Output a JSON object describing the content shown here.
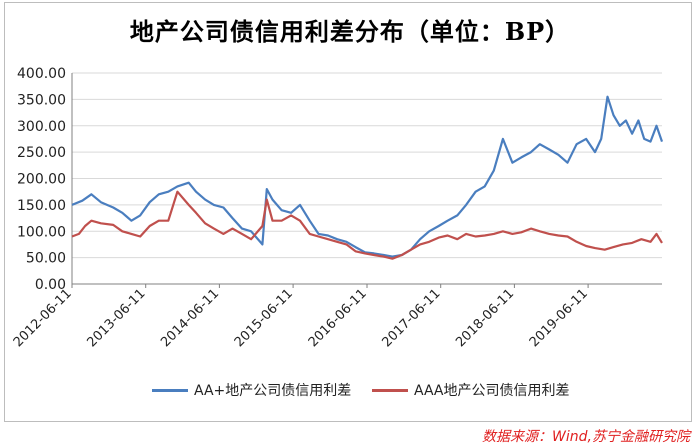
{
  "title": "地产公司债信用利差分布（单位：BP）",
  "source_note": "数据来源：Wind,苏宁金融研究院",
  "colors": {
    "aa_plus": "#4a7ebf",
    "aaa": "#c0504d",
    "grid": "#d9d9d9",
    "axis": "#808080"
  },
  "chart_data": {
    "type": "line",
    "title": "地产公司债信用利差分布（单位：BP）",
    "xlabel": "",
    "ylabel": "",
    "ylim": [
      0,
      400
    ],
    "yticks": [
      "0.00",
      "50.00",
      "100.00",
      "150.00",
      "200.00",
      "250.00",
      "300.00",
      "350.00",
      "400.00"
    ],
    "xlim": [
      "2012-06-11",
      "2020-06-11"
    ],
    "xticks": [
      "2012-06-11",
      "2013-06-11",
      "2014-06-11",
      "2015-06-11",
      "2016-06-11",
      "2017-06-11",
      "2018-06-11",
      "2019-06-11"
    ],
    "grid": "horizontal",
    "legend": "bottom",
    "series": [
      {
        "name": "AA+地产公司债信用利差",
        "color": "#4a7ebf",
        "points": [
          [
            "2012-06-11",
            150
          ],
          [
            "2012-08-01",
            158
          ],
          [
            "2012-09-15",
            170
          ],
          [
            "2012-11-01",
            155
          ],
          [
            "2013-01-01",
            145
          ],
          [
            "2013-02-15",
            135
          ],
          [
            "2013-04-01",
            120
          ],
          [
            "2013-05-15",
            130
          ],
          [
            "2013-07-01",
            155
          ],
          [
            "2013-08-15",
            170
          ],
          [
            "2013-10-01",
            175
          ],
          [
            "2013-11-15",
            185
          ],
          [
            "2014-01-10",
            192
          ],
          [
            "2014-02-15",
            175
          ],
          [
            "2014-04-01",
            160
          ],
          [
            "2014-05-15",
            150
          ],
          [
            "2014-07-01",
            145
          ],
          [
            "2014-08-15",
            125
          ],
          [
            "2014-10-01",
            105
          ],
          [
            "2014-11-15",
            100
          ],
          [
            "2015-01-10",
            75
          ],
          [
            "2015-02-01",
            180
          ],
          [
            "2015-03-01",
            160
          ],
          [
            "2015-04-15",
            140
          ],
          [
            "2015-06-01",
            135
          ],
          [
            "2015-07-15",
            150
          ],
          [
            "2015-09-01",
            120
          ],
          [
            "2015-10-15",
            95
          ],
          [
            "2015-12-01",
            92
          ],
          [
            "2016-01-15",
            85
          ],
          [
            "2016-03-01",
            80
          ],
          [
            "2016-04-15",
            70
          ],
          [
            "2016-06-01",
            60
          ],
          [
            "2016-07-15",
            58
          ],
          [
            "2016-09-01",
            55
          ],
          [
            "2016-10-15",
            52
          ],
          [
            "2016-12-01",
            55
          ],
          [
            "2017-01-15",
            65
          ],
          [
            "2017-03-01",
            85
          ],
          [
            "2017-04-15",
            100
          ],
          [
            "2017-06-01",
            110
          ],
          [
            "2017-07-15",
            120
          ],
          [
            "2017-09-01",
            130
          ],
          [
            "2017-10-15",
            150
          ],
          [
            "2017-12-01",
            175
          ],
          [
            "2018-01-15",
            185
          ],
          [
            "2018-03-01",
            215
          ],
          [
            "2018-04-15",
            275
          ],
          [
            "2018-06-01",
            230
          ],
          [
            "2018-07-15",
            240
          ],
          [
            "2018-09-01",
            250
          ],
          [
            "2018-10-15",
            265
          ],
          [
            "2018-12-01",
            255
          ],
          [
            "2019-01-15",
            245
          ],
          [
            "2019-03-01",
            230
          ],
          [
            "2019-04-15",
            265
          ],
          [
            "2019-06-01",
            275
          ],
          [
            "2019-07-15",
            250
          ],
          [
            "2019-08-15",
            275
          ],
          [
            "2019-09-15",
            355
          ],
          [
            "2019-10-15",
            320
          ],
          [
            "2019-11-15",
            300
          ],
          [
            "2019-12-15",
            310
          ],
          [
            "2020-01-15",
            285
          ],
          [
            "2020-02-15",
            310
          ],
          [
            "2020-03-15",
            275
          ],
          [
            "2020-04-15",
            270
          ],
          [
            "2020-05-15",
            300
          ],
          [
            "2020-06-11",
            270
          ]
        ]
      },
      {
        "name": "AAA地产公司债信用利差",
        "color": "#c0504d",
        "points": [
          [
            "2012-06-11",
            90
          ],
          [
            "2012-07-15",
            95
          ],
          [
            "2012-08-15",
            110
          ],
          [
            "2012-09-15",
            120
          ],
          [
            "2012-11-01",
            115
          ],
          [
            "2013-01-01",
            112
          ],
          [
            "2013-02-15",
            100
          ],
          [
            "2013-04-01",
            95
          ],
          [
            "2013-05-15",
            90
          ],
          [
            "2013-07-01",
            110
          ],
          [
            "2013-08-15",
            120
          ],
          [
            "2013-10-01",
            120
          ],
          [
            "2013-11-15",
            175
          ],
          [
            "2014-01-10",
            150
          ],
          [
            "2014-02-15",
            135
          ],
          [
            "2014-04-01",
            115
          ],
          [
            "2014-05-15",
            105
          ],
          [
            "2014-07-01",
            95
          ],
          [
            "2014-08-15",
            105
          ],
          [
            "2014-10-01",
            95
          ],
          [
            "2014-11-15",
            85
          ],
          [
            "2015-01-10",
            110
          ],
          [
            "2015-02-01",
            160
          ],
          [
            "2015-03-01",
            120
          ],
          [
            "2015-04-15",
            120
          ],
          [
            "2015-06-01",
            130
          ],
          [
            "2015-07-15",
            120
          ],
          [
            "2015-09-01",
            95
          ],
          [
            "2015-10-15",
            90
          ],
          [
            "2015-12-01",
            85
          ],
          [
            "2016-01-15",
            80
          ],
          [
            "2016-03-01",
            75
          ],
          [
            "2016-04-15",
            62
          ],
          [
            "2016-06-01",
            58
          ],
          [
            "2016-07-15",
            55
          ],
          [
            "2016-09-01",
            52
          ],
          [
            "2016-10-15",
            48
          ],
          [
            "2016-12-01",
            55
          ],
          [
            "2017-01-15",
            65
          ],
          [
            "2017-03-01",
            75
          ],
          [
            "2017-04-15",
            80
          ],
          [
            "2017-06-01",
            88
          ],
          [
            "2017-07-15",
            92
          ],
          [
            "2017-09-01",
            85
          ],
          [
            "2017-10-15",
            95
          ],
          [
            "2017-12-01",
            90
          ],
          [
            "2018-01-15",
            92
          ],
          [
            "2018-03-01",
            95
          ],
          [
            "2018-04-15",
            100
          ],
          [
            "2018-06-01",
            95
          ],
          [
            "2018-07-15",
            98
          ],
          [
            "2018-09-01",
            105
          ],
          [
            "2018-10-15",
            100
          ],
          [
            "2018-12-01",
            95
          ],
          [
            "2019-01-15",
            92
          ],
          [
            "2019-03-01",
            90
          ],
          [
            "2019-04-15",
            80
          ],
          [
            "2019-06-01",
            72
          ],
          [
            "2019-07-15",
            68
          ],
          [
            "2019-09-01",
            65
          ],
          [
            "2019-10-15",
            70
          ],
          [
            "2019-12-01",
            75
          ],
          [
            "2020-01-15",
            78
          ],
          [
            "2020-03-01",
            85
          ],
          [
            "2020-04-15",
            80
          ],
          [
            "2020-05-15",
            95
          ],
          [
            "2020-06-11",
            78
          ]
        ]
      }
    ]
  }
}
